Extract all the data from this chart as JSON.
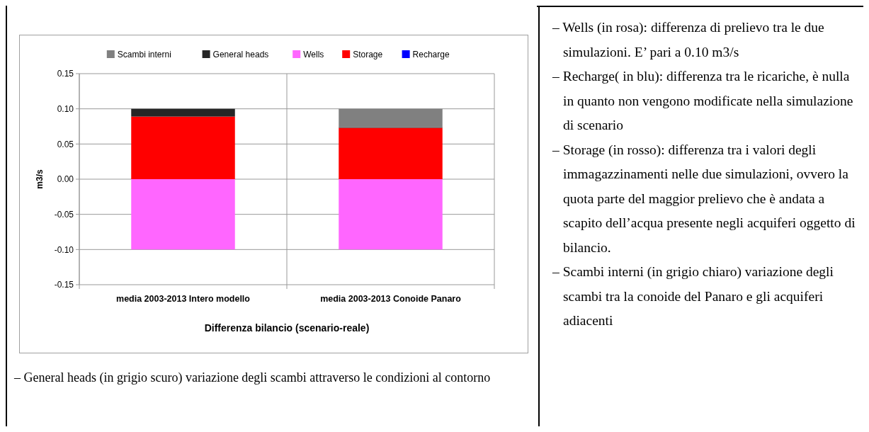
{
  "chart_data": {
    "type": "bar",
    "stacked": true,
    "xlabel": "Differenza bilancio (scenario-reale)",
    "ylabel": "m3/s",
    "categories": [
      "media 2003-2013 Intero modello",
      "media 2003-2013 Conoide Panaro"
    ],
    "series": [
      {
        "name": "Recharge",
        "color": "#0000ff",
        "values": [
          0,
          0
        ]
      },
      {
        "name": "Storage",
        "color": "#ff0000",
        "values": [
          0.089,
          0.073
        ]
      },
      {
        "name": "Wells",
        "color": "#ff66ff",
        "values": [
          -0.1,
          -0.1
        ]
      },
      {
        "name": "General heads",
        "color": "#262626",
        "values": [
          0.011,
          0.001
        ]
      },
      {
        "name": "Scambi interni",
        "color": "#808080",
        "values": [
          0,
          0.026
        ]
      }
    ],
    "ylim": [
      -0.15,
      0.15
    ],
    "yticks": [
      {
        "value": -0.15,
        "label": "-0.15"
      },
      {
        "value": -0.1,
        "label": "-0.10"
      },
      {
        "value": -0.05,
        "label": "-0.05"
      },
      {
        "value": 0,
        "label": "0.00"
      },
      {
        "value": 0.05,
        "label": "0.05"
      },
      {
        "value": 0.1,
        "label": "0.10"
      },
      {
        "value": 0.15,
        "label": "0.15"
      }
    ],
    "grid": true,
    "legend": "top",
    "annotations": [
      "– General heads (in grigio scuro) variazione degli scambi attraverso le condizioni al contorno",
      "– Wells (in rosa): differenza di prelievo tra le due simulazioni. E’ pari a 0.10 m3/s",
      "– Recharge( in blu): differenza tra le ricariche, è nulla in quanto non vengono modificate nella simulazione di scenario",
      "– Storage (in rosso): differenza tra i valori degli immagazzinamenti nelle due simulazioni, ovvero la quota parte del maggior prelievo che è andata a scapito dell’acqua presente negli acquiferi oggetto di bilancio.",
      "– Scambi interni (in grigio chiaro) variazione degli scambi tra la conoide del Panaro e gli acquiferi adiacenti"
    ]
  }
}
